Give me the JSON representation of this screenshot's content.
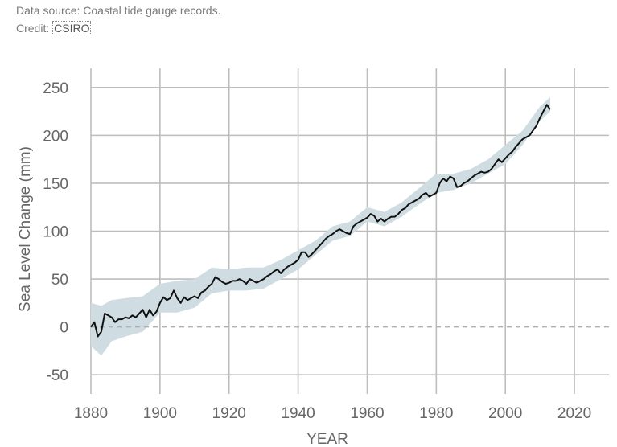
{
  "caption": {
    "source_text": "Data source: Coastal tide gauge records.",
    "credit_prefix": "Credit: ",
    "credit_link": "CSIRO"
  },
  "chart_data": {
    "type": "line",
    "title": "",
    "xlabel": "YEAR",
    "ylabel": "Sea Level Change (mm)",
    "xlim": [
      1880,
      2030
    ],
    "ylim": [
      -70,
      270
    ],
    "x_ticks": [
      1880,
      1900,
      1920,
      1940,
      1960,
      1980,
      2000,
      2020
    ],
    "y_ticks": [
      -50,
      0,
      50,
      100,
      150,
      200,
      250
    ],
    "grid": true,
    "zero_line": "dashed",
    "colors": {
      "line": "#111111",
      "band": "#cfdde3",
      "grid": "#bdbdbd",
      "zero": "#b0b0b0"
    },
    "series": [
      {
        "band": "uncertainty",
        "x": [
          1880,
          1883,
          1886,
          1890,
          1895,
          1900,
          1905,
          1910,
          1915,
          1920,
          1925,
          1930,
          1935,
          1940,
          1945,
          1950,
          1955,
          1960,
          1965,
          1970,
          1975,
          1980,
          1985,
          1990,
          1995,
          2000,
          2005,
          2010,
          2013
        ],
        "upper": [
          25,
          22,
          28,
          30,
          32,
          45,
          48,
          50,
          62,
          60,
          62,
          62,
          70,
          80,
          90,
          105,
          110,
          125,
          120,
          130,
          145,
          160,
          160,
          165,
          175,
          190,
          205,
          230,
          240
        ],
        "lower": [
          -20,
          -30,
          -15,
          -10,
          -5,
          15,
          15,
          20,
          35,
          38,
          38,
          40,
          50,
          60,
          75,
          90,
          95,
          110,
          105,
          115,
          128,
          140,
          143,
          150,
          160,
          170,
          190,
          215,
          225
        ]
      },
      {
        "x": [
          1880,
          1881,
          1882,
          1883,
          1884,
          1885,
          1886,
          1887,
          1888,
          1889,
          1890,
          1891,
          1892,
          1893,
          1894,
          1895,
          1896,
          1897,
          1898,
          1899,
          1900,
          1901,
          1902,
          1903,
          1904,
          1905,
          1906,
          1907,
          1908,
          1909,
          1910,
          1911,
          1912,
          1913,
          1914,
          1915,
          1916,
          1917,
          1918,
          1919,
          1920,
          1921,
          1922,
          1923,
          1924,
          1925,
          1926,
          1927,
          1928,
          1929,
          1930,
          1931,
          1932,
          1933,
          1934,
          1935,
          1936,
          1937,
          1938,
          1939,
          1940,
          1941,
          1942,
          1943,
          1944,
          1945,
          1946,
          1947,
          1948,
          1949,
          1950,
          1951,
          1952,
          1953,
          1954,
          1955,
          1956,
          1957,
          1958,
          1959,
          1960,
          1961,
          1962,
          1963,
          1964,
          1965,
          1966,
          1967,
          1968,
          1969,
          1970,
          1971,
          1972,
          1973,
          1974,
          1975,
          1976,
          1977,
          1978,
          1979,
          1980,
          1981,
          1982,
          1983,
          1984,
          1985,
          1986,
          1987,
          1988,
          1989,
          1990,
          1991,
          1992,
          1993,
          1994,
          1995,
          1996,
          1997,
          1998,
          1999,
          2000,
          2001,
          2002,
          2003,
          2004,
          2005,
          2006,
          2007,
          2008,
          2009,
          2010,
          2011,
          2012,
          2013
        ],
        "y": [
          0,
          5,
          -10,
          -5,
          14,
          12,
          10,
          5,
          8,
          8,
          10,
          9,
          12,
          10,
          14,
          18,
          10,
          18,
          12,
          16,
          25,
          31,
          28,
          30,
          38,
          30,
          25,
          31,
          28,
          30,
          32,
          30,
          36,
          38,
          42,
          45,
          52,
          50,
          47,
          45,
          46,
          48,
          48,
          50,
          48,
          45,
          50,
          48,
          46,
          48,
          50,
          53,
          55,
          58,
          60,
          56,
          60,
          63,
          65,
          67,
          70,
          78,
          78,
          73,
          76,
          80,
          84,
          88,
          92,
          95,
          97,
          100,
          102,
          100,
          98,
          97,
          105,
          108,
          110,
          112,
          114,
          118,
          116,
          110,
          113,
          110,
          113,
          115,
          115,
          118,
          122,
          124,
          128,
          130,
          132,
          134,
          138,
          140,
          136,
          138,
          140,
          150,
          155,
          152,
          157,
          155,
          146,
          147,
          150,
          152,
          155,
          158,
          160,
          162,
          161,
          162,
          165,
          170,
          175,
          172,
          176,
          180,
          183,
          188,
          192,
          196,
          198,
          200,
          205,
          210,
          218,
          225,
          232,
          227
        ]
      }
    ]
  }
}
